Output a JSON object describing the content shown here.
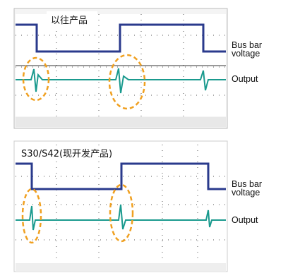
{
  "top": {
    "title": "以往产品",
    "labels": [
      "Bus bar",
      "voltage",
      "Output"
    ]
  },
  "bottom": {
    "title": "S30/S42(现开发产品)",
    "labels": [
      "Bus bar",
      "voltage",
      "Output"
    ]
  }
}
